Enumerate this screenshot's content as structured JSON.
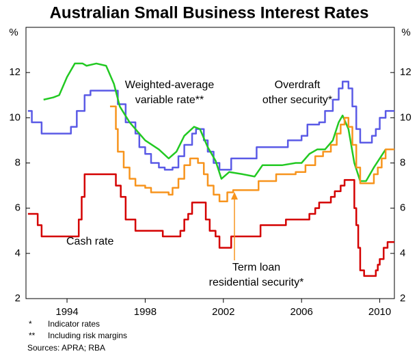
{
  "chart_data": {
    "type": "line",
    "title": "Australian Small Business Interest Rates",
    "y_unit": "%",
    "xlim": [
      1991.9,
      2010.75
    ],
    "xticks": [
      1994,
      1998,
      2002,
      2006,
      2010
    ],
    "ylim": [
      2,
      14
    ],
    "yticks": [
      2,
      4,
      6,
      8,
      10,
      12
    ],
    "y2lim": [
      2,
      14
    ],
    "y2ticks": [
      2,
      4,
      6,
      8,
      10,
      12
    ],
    "series": [
      {
        "name": [
          "Cash rate"
        ],
        "color": "#d40000",
        "step": true,
        "x": [
          1992.0,
          1992.5,
          1992.7,
          1994.6,
          1994.75,
          1994.9,
          1996.5,
          1996.75,
          1997.0,
          1997.5,
          1998.9,
          1999.8,
          2000.0,
          2000.2,
          2000.4,
          2001.1,
          2001.3,
          2001.6,
          2001.8,
          2002.4,
          2003.9,
          2005.2,
          2006.4,
          2006.7,
          2006.9,
          2007.5,
          2007.7,
          2008.0,
          2008.2,
          2008.7,
          2008.8,
          2008.9,
          2009.0,
          2009.2,
          2009.8,
          2009.9,
          2010.0,
          2010.2,
          2010.4,
          2010.75
        ],
        "values": [
          5.75,
          5.25,
          4.75,
          5.5,
          6.5,
          7.5,
          7.0,
          6.5,
          5.5,
          5.0,
          4.75,
          5.0,
          5.5,
          5.75,
          6.25,
          5.5,
          5.0,
          4.75,
          4.25,
          4.75,
          5.25,
          5.5,
          5.75,
          6.0,
          6.25,
          6.5,
          6.75,
          7.0,
          7.25,
          6.0,
          5.25,
          4.25,
          3.25,
          3.0,
          3.25,
          3.5,
          3.75,
          4.25,
          4.5,
          4.5
        ]
      },
      {
        "name": [
          "Overdraft",
          "other security*"
        ],
        "color": "#5a5ae6",
        "step": true,
        "x": [
          1992.0,
          1992.2,
          1992.7,
          1994.2,
          1994.5,
          1994.9,
          1995.2,
          1996.6,
          1997.0,
          1997.5,
          1997.7,
          1998.0,
          1998.3,
          1998.7,
          1999.0,
          1999.4,
          1999.7,
          2000.0,
          2000.4,
          2000.6,
          2001.0,
          2001.2,
          2001.5,
          2001.8,
          2002.4,
          2003.7,
          2005.3,
          2006.0,
          2006.3,
          2006.9,
          2007.2,
          2007.6,
          2007.9,
          2008.1,
          2008.4,
          2008.6,
          2008.8,
          2009.0,
          2009.6,
          2009.8,
          2010.0,
          2010.3,
          2010.75
        ],
        "values": [
          10.3,
          9.8,
          9.3,
          9.6,
          10.3,
          11.0,
          11.2,
          10.6,
          9.8,
          9.3,
          8.7,
          8.4,
          8.0,
          7.8,
          7.7,
          7.8,
          8.3,
          8.8,
          9.3,
          9.5,
          9.0,
          8.5,
          8.0,
          7.7,
          8.2,
          8.7,
          9.0,
          9.2,
          9.7,
          9.8,
          10.3,
          10.8,
          11.3,
          11.6,
          11.3,
          10.5,
          9.5,
          8.9,
          9.2,
          9.5,
          10.0,
          10.3,
          10.3
        ]
      },
      {
        "name": [
          "Weighted-average",
          "variable rate**"
        ],
        "color": "#22c922",
        "step": false,
        "x": [
          1992.8,
          1993.3,
          1993.6,
          1994.0,
          1994.4,
          1994.8,
          1995.0,
          1995.5,
          1996.0,
          1996.4,
          1996.7,
          1997.2,
          1998.0,
          1998.7,
          1999.2,
          1999.6,
          2000.0,
          2000.5,
          2000.8,
          2001.2,
          2001.6,
          2001.9,
          2002.3,
          2003.0,
          2003.6,
          2004.0,
          2005.0,
          2005.7,
          2006.0,
          2006.4,
          2006.8,
          2007.2,
          2007.6,
          2007.9,
          2008.1,
          2008.4,
          2008.7,
          2009.0,
          2009.3,
          2009.7,
          2010.0,
          2010.3
        ],
        "values": [
          10.8,
          10.9,
          11.0,
          11.8,
          12.4,
          12.4,
          12.3,
          12.4,
          12.3,
          11.5,
          10.5,
          9.8,
          9.0,
          8.6,
          8.2,
          8.5,
          9.2,
          9.6,
          9.5,
          8.7,
          8.1,
          7.3,
          7.6,
          7.5,
          7.4,
          7.9,
          7.9,
          8.0,
          8.0,
          8.4,
          8.6,
          8.6,
          9.0,
          9.8,
          10.1,
          9.5,
          8.0,
          7.2,
          7.2,
          7.8,
          8.2,
          8.6
        ]
      },
      {
        "name": [
          "Term loan",
          "residential security*"
        ],
        "color": "#f7941d",
        "step": true,
        "x": [
          1996.2,
          1996.5,
          1996.6,
          1996.9,
          1997.2,
          1997.5,
          1998.0,
          1998.3,
          1999.2,
          1999.4,
          1999.7,
          2000.0,
          2000.3,
          2000.7,
          2001.0,
          2001.2,
          2001.5,
          2001.8,
          2002.2,
          2002.5,
          2003.8,
          2004.7,
          2005.7,
          2006.2,
          2006.7,
          2007.1,
          2007.5,
          2007.8,
          2008.0,
          2008.2,
          2008.4,
          2008.6,
          2008.8,
          2009.0,
          2009.5,
          2009.7,
          2009.9,
          2010.1,
          2010.3,
          2010.75
        ],
        "values": [
          10.5,
          9.5,
          8.5,
          7.8,
          7.3,
          7.0,
          6.9,
          6.7,
          6.6,
          6.9,
          7.3,
          7.9,
          8.2,
          8.0,
          7.5,
          7.0,
          6.6,
          6.3,
          6.7,
          6.8,
          7.2,
          7.5,
          7.6,
          7.9,
          8.3,
          8.5,
          8.8,
          9.3,
          9.7,
          10.0,
          9.6,
          8.8,
          7.8,
          7.1,
          7.1,
          7.5,
          7.8,
          8.2,
          8.6,
          8.6
        ]
      }
    ],
    "footnotes": [
      [
        "*",
        "Indicator rates"
      ],
      [
        "**",
        "Including risk margins"
      ]
    ],
    "source": "Sources: APRA; RBA"
  }
}
